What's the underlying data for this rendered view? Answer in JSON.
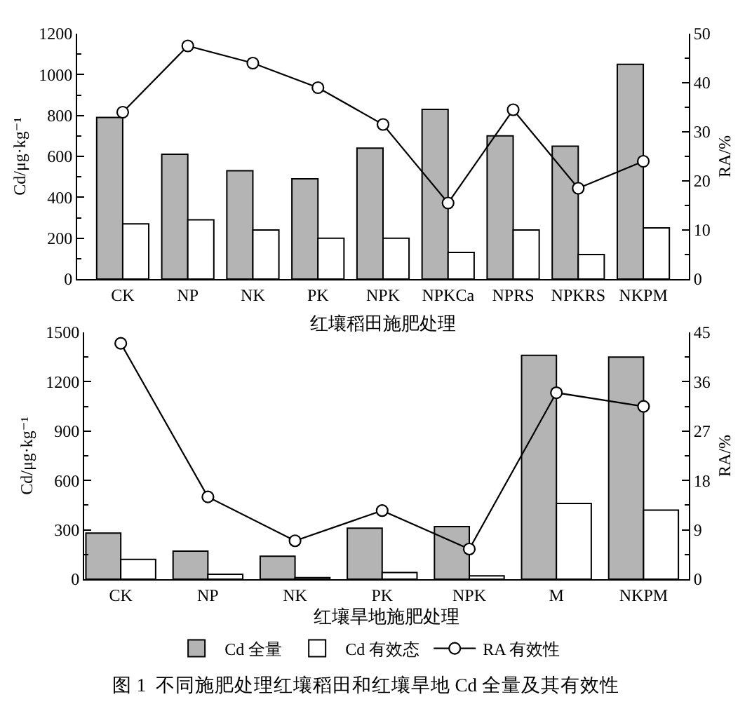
{
  "chart_data": [
    {
      "type": "bar",
      "xlabel": "红壤稻田施肥处理",
      "ylabel": "Cd/μg·kg⁻¹",
      "y2label": "RA/%",
      "categories": [
        "CK",
        "NP",
        "NK",
        "PK",
        "NPK",
        "NPKCa",
        "NPRS",
        "NPKRS",
        "NKPM"
      ],
      "series": [
        {
          "color": "#b4b4b4",
          "values": [
            790,
            610,
            530,
            490,
            640,
            830,
            700,
            650,
            1050
          ]
        },
        {
          "color": "#ffffff",
          "values": [
            270,
            290,
            240,
            200,
            200,
            130,
            240,
            120,
            250
          ]
        },
        {
          "type": "line",
          "axis": "y2",
          "color": "#000000",
          "marker": "circle",
          "values": [
            34,
            47.5,
            44,
            39,
            31.5,
            15.5,
            34.5,
            18.5,
            24
          ]
        }
      ],
      "ylim": [
        0,
        1200
      ],
      "yticks": [
        0,
        {
          "value": 100,
          "label": null
        },
        200,
        {
          "value": 300,
          "label": null
        },
        400,
        {
          "value": 500,
          "label": null
        },
        600,
        {
          "value": 700,
          "label": null
        },
        800,
        {
          "value": 900,
          "label": null
        },
        1000,
        {
          "value": 1100,
          "label": null
        },
        1200
      ],
      "y2lim": [
        0,
        50
      ],
      "y2ticks": [
        0,
        {
          "value": 5,
          "label": null
        },
        10,
        {
          "value": 15,
          "label": null
        },
        20,
        {
          "value": 25,
          "label": null
        },
        30,
        {
          "value": 35,
          "label": null
        },
        40,
        {
          "value": 45,
          "label": null
        },
        50
      ],
      "legend": false
    },
    {
      "type": "bar",
      "xlabel": "红壤旱地施肥处理",
      "ylabel": "Cd/μg·kg⁻¹",
      "y2label": "RA/%",
      "categories": [
        "CK",
        "NP",
        "NK",
        "PK",
        "NPK",
        "M",
        "NKPM"
      ],
      "series": [
        {
          "name": "Cd 全量",
          "color": "#b4b4b4",
          "values": [
            280,
            170,
            140,
            310,
            320,
            1360,
            1350
          ]
        },
        {
          "name": "Cd 有效态",
          "color": "#ffffff",
          "values": [
            120,
            30,
            10,
            40,
            20,
            460,
            420
          ]
        },
        {
          "name": "RA 有效性",
          "type": "line",
          "axis": "y2",
          "color": "#000000",
          "marker": "circle",
          "values": [
            43,
            15,
            7,
            12.5,
            5.5,
            34,
            31.5
          ]
        }
      ],
      "ylim": [
        0,
        1500
      ],
      "yticks": [
        0,
        {
          "value": 150,
          "label": null
        },
        300,
        {
          "value": 450,
          "label": null
        },
        600,
        {
          "value": 750,
          "label": null
        },
        900,
        {
          "value": 1050,
          "label": null
        },
        1200,
        {
          "value": 1350,
          "label": null
        },
        1500
      ],
      "y2lim": [
        0,
        45
      ],
      "y2ticks": [
        0,
        {
          "value": 4.5,
          "label": null
        },
        9,
        {
          "value": 13.5,
          "label": null
        },
        18,
        {
          "value": 22.5,
          "label": null
        },
        27,
        {
          "value": 31.5,
          "label": null
        },
        36,
        {
          "value": 40.5,
          "label": null
        },
        45
      ],
      "legend": "bottom",
      "annotations": [
        "图 1  不同施肥处理红壤稻田和红壤旱地 Cd 全量及其有效性"
      ]
    }
  ]
}
